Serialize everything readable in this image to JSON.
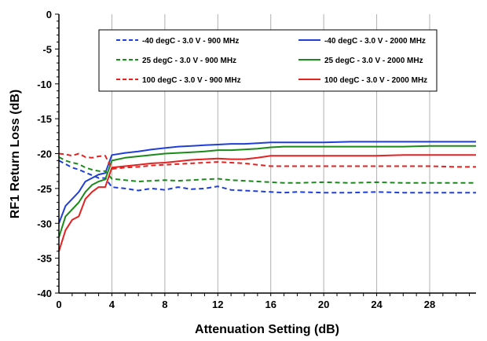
{
  "chart_data": {
    "type": "line",
    "title": "",
    "xlabel": "Attenuation Setting (dB)",
    "ylabel": "RF1 Return Loss (dB)",
    "xlim": [
      0,
      31.5
    ],
    "ylim": [
      -40,
      0
    ],
    "xticks": [
      "0",
      "4",
      "8",
      "12",
      "16",
      "20",
      "24",
      "28"
    ],
    "yticks": [
      "0",
      "-5",
      "-10",
      "-15",
      "-20",
      "-25",
      "-30",
      "-35",
      "-40"
    ],
    "grid": "vertical",
    "legend": "top-center, two columns, boxed",
    "series": [
      {
        "name": "-40 degC - 3.0 V - 900 MHz",
        "color": "#1f3fd6",
        "dash": "dashed",
        "x": [
          0,
          0.5,
          1,
          1.5,
          2,
          2.5,
          3,
          3.5,
          4,
          5,
          6,
          7,
          8,
          9,
          10,
          11,
          12,
          13,
          14,
          15,
          16,
          17,
          18,
          20,
          22,
          24,
          26,
          28,
          30,
          31.5
        ],
        "y": [
          -21.0,
          -21.5,
          -22.0,
          -22.3,
          -22.7,
          -23.1,
          -23.5,
          -23.5,
          -24.8,
          -25.0,
          -25.3,
          -25.0,
          -25.2,
          -24.8,
          -25.1,
          -25.0,
          -24.7,
          -25.2,
          -25.3,
          -25.4,
          -25.5,
          -25.6,
          -25.5,
          -25.6,
          -25.6,
          -25.5,
          -25.6,
          -25.6,
          -25.6,
          -25.6
        ]
      },
      {
        "name": "-40 degC - 3.0 V - 2000 MHz",
        "color": "#1f3fd6",
        "dash": "solid",
        "x": [
          0,
          0.5,
          1,
          1.5,
          2,
          2.5,
          3,
          3.5,
          4,
          5,
          6,
          7,
          8,
          9,
          10,
          11,
          12,
          13,
          14,
          15,
          16,
          17,
          18,
          20,
          22,
          24,
          26,
          28,
          30,
          31.5
        ],
        "y": [
          -30.0,
          -27.5,
          -26.5,
          -25.5,
          -24.0,
          -23.5,
          -23.0,
          -22.8,
          -20.2,
          -19.9,
          -19.7,
          -19.4,
          -19.2,
          -19.0,
          -18.9,
          -18.8,
          -18.7,
          -18.6,
          -18.6,
          -18.5,
          -18.4,
          -18.4,
          -18.4,
          -18.4,
          -18.3,
          -18.3,
          -18.3,
          -18.3,
          -18.3,
          -18.3
        ]
      },
      {
        "name": "25 degC - 3.0 V - 900 MHz",
        "color": "#1a8a1a",
        "dash": "dashed",
        "x": [
          0,
          0.5,
          1,
          1.5,
          2,
          2.5,
          3,
          3.5,
          4,
          5,
          6,
          7,
          8,
          9,
          10,
          11,
          12,
          13,
          14,
          15,
          16,
          17,
          18,
          20,
          22,
          24,
          26,
          28,
          30,
          31.5
        ],
        "y": [
          -20.5,
          -21.0,
          -21.3,
          -21.5,
          -22.0,
          -22.3,
          -22.5,
          -22.5,
          -23.6,
          -23.8,
          -24.0,
          -23.9,
          -23.8,
          -23.9,
          -23.8,
          -23.7,
          -23.6,
          -23.8,
          -23.9,
          -24.0,
          -24.1,
          -24.2,
          -24.2,
          -24.1,
          -24.2,
          -24.1,
          -24.2,
          -24.2,
          -24.2,
          -24.2
        ]
      },
      {
        "name": "25 degC - 3.0 V - 2000 MHz",
        "color": "#1a8a1a",
        "dash": "solid",
        "x": [
          0,
          0.5,
          1,
          1.5,
          2,
          2.5,
          3,
          3.5,
          4,
          5,
          6,
          7,
          8,
          9,
          10,
          11,
          12,
          13,
          14,
          15,
          16,
          17,
          18,
          20,
          22,
          24,
          26,
          28,
          30,
          31.5
        ],
        "y": [
          -32.0,
          -29.0,
          -28.0,
          -27.0,
          -25.5,
          -24.5,
          -24.0,
          -23.7,
          -21.0,
          -20.6,
          -20.4,
          -20.2,
          -20.0,
          -19.9,
          -19.8,
          -19.7,
          -19.5,
          -19.5,
          -19.4,
          -19.3,
          -19.1,
          -19.0,
          -19.0,
          -19.0,
          -19.0,
          -19.0,
          -19.0,
          -18.9,
          -18.9,
          -18.9
        ]
      },
      {
        "name": "100 degC - 3.0 V - 900 MHz",
        "color": "#e32222",
        "dash": "dashed",
        "x": [
          0,
          0.5,
          1,
          1.5,
          2,
          2.5,
          3,
          3.5,
          4,
          5,
          6,
          7,
          8,
          9,
          10,
          11,
          12,
          13,
          14,
          15,
          16,
          17,
          18,
          20,
          22,
          24,
          26,
          28,
          30,
          31.5
        ],
        "y": [
          -20.0,
          -20.1,
          -20.3,
          -20.0,
          -20.5,
          -20.6,
          -20.4,
          -20.3,
          -22.2,
          -22.0,
          -21.9,
          -21.7,
          -21.6,
          -21.5,
          -21.4,
          -21.3,
          -21.2,
          -21.3,
          -21.4,
          -21.6,
          -21.8,
          -21.8,
          -21.8,
          -21.8,
          -21.8,
          -21.8,
          -21.8,
          -21.8,
          -21.9,
          -21.9
        ]
      },
      {
        "name": "100 degC - 3.0 V - 2000 MHz",
        "color": "#e32222",
        "dash": "solid",
        "x": [
          0,
          0.5,
          1,
          1.5,
          2,
          2.5,
          3,
          3.5,
          4,
          5,
          6,
          7,
          8,
          9,
          10,
          11,
          12,
          13,
          14,
          15,
          16,
          17,
          18,
          20,
          22,
          24,
          26,
          28,
          30,
          31.5
        ],
        "y": [
          -34.0,
          -31.0,
          -29.5,
          -29.0,
          -26.5,
          -25.5,
          -24.8,
          -24.8,
          -22.0,
          -21.8,
          -21.6,
          -21.4,
          -21.3,
          -21.1,
          -20.9,
          -20.8,
          -20.7,
          -20.8,
          -20.8,
          -20.6,
          -20.3,
          -20.3,
          -20.3,
          -20.3,
          -20.3,
          -20.3,
          -20.2,
          -20.2,
          -20.2,
          -20.2
        ]
      }
    ]
  }
}
